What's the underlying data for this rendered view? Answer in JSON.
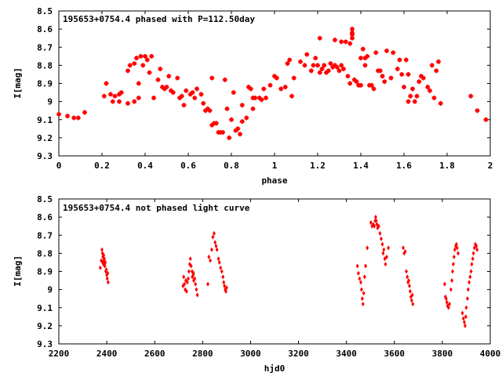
{
  "chart_data": [
    {
      "type": "scatter",
      "title": "195653+0754.4 phased with P=112.50day",
      "xlabel": "phase",
      "ylabel": "I[mag]",
      "xlim": [
        0,
        2
      ],
      "ylim": [
        8.5,
        9.3
      ],
      "y_inverted": true,
      "grid": false,
      "marker_color": "#ff0000",
      "marker": "plus",
      "x_ticks": [
        "0",
        "0.2",
        "0.4",
        "0.6",
        "0.8",
        "1",
        "1.2",
        "1.4",
        "1.6",
        "1.8",
        "2"
      ],
      "y_ticks": [
        "8.5",
        "8.6",
        "8.7",
        "8.8",
        "8.9",
        "9",
        "9.1",
        "9.2",
        "9.3"
      ],
      "points": [
        [
          0.0,
          9.07
        ],
        [
          0.04,
          9.08
        ],
        [
          0.07,
          9.09
        ],
        [
          0.09,
          9.09
        ],
        [
          0.12,
          9.06
        ],
        [
          0.21,
          8.97
        ],
        [
          0.22,
          8.9
        ],
        [
          0.24,
          8.96
        ],
        [
          0.25,
          9.0
        ],
        [
          0.26,
          8.97
        ],
        [
          0.28,
          8.96
        ],
        [
          0.28,
          9.0
        ],
        [
          0.29,
          8.95
        ],
        [
          0.32,
          8.83
        ],
        [
          0.32,
          9.01
        ],
        [
          0.33,
          8.8
        ],
        [
          0.35,
          8.79
        ],
        [
          0.35,
          9.0
        ],
        [
          0.36,
          8.76
        ],
        [
          0.37,
          8.9
        ],
        [
          0.37,
          8.98
        ],
        [
          0.38,
          8.75
        ],
        [
          0.39,
          8.8
        ],
        [
          0.4,
          8.75
        ],
        [
          0.41,
          8.77
        ],
        [
          0.42,
          8.84
        ],
        [
          0.43,
          8.75
        ],
        [
          0.44,
          8.98
        ],
        [
          0.46,
          8.88
        ],
        [
          0.47,
          8.82
        ],
        [
          0.48,
          8.92
        ],
        [
          0.49,
          8.93
        ],
        [
          0.5,
          8.92
        ],
        [
          0.51,
          8.86
        ],
        [
          0.52,
          8.94
        ],
        [
          0.53,
          8.95
        ],
        [
          0.55,
          8.87
        ],
        [
          0.56,
          8.98
        ],
        [
          0.57,
          8.97
        ],
        [
          0.58,
          9.02
        ],
        [
          0.59,
          8.94
        ],
        [
          0.61,
          8.96
        ],
        [
          0.62,
          8.95
        ],
        [
          0.63,
          8.98
        ],
        [
          0.64,
          8.93
        ],
        [
          0.66,
          8.96
        ],
        [
          0.67,
          9.01
        ],
        [
          0.68,
          9.05
        ],
        [
          0.69,
          9.04
        ],
        [
          0.7,
          9.05
        ],
        [
          0.71,
          9.13
        ],
        [
          0.71,
          8.87
        ],
        [
          0.72,
          9.12
        ],
        [
          0.73,
          9.12
        ],
        [
          0.74,
          9.17
        ],
        [
          0.75,
          9.17
        ],
        [
          0.76,
          9.17
        ],
        [
          0.77,
          8.88
        ],
        [
          0.78,
          9.04
        ],
        [
          0.79,
          9.2
        ],
        [
          0.8,
          9.1
        ],
        [
          0.81,
          8.95
        ],
        [
          0.82,
          9.16
        ],
        [
          0.83,
          9.15
        ],
        [
          0.84,
          9.18
        ],
        [
          0.85,
          9.11
        ],
        [
          0.85,
          9.02
        ],
        [
          0.87,
          9.09
        ],
        [
          0.88,
          8.92
        ],
        [
          0.89,
          8.93
        ],
        [
          0.9,
          9.04
        ],
        [
          0.9,
          8.98
        ],
        [
          0.91,
          8.98
        ],
        [
          0.93,
          8.98
        ],
        [
          0.94,
          8.99
        ],
        [
          0.95,
          8.93
        ],
        [
          0.96,
          8.98
        ],
        [
          0.98,
          8.91
        ],
        [
          1.0,
          8.86
        ],
        [
          1.01,
          8.87
        ],
        [
          1.03,
          8.93
        ],
        [
          1.05,
          8.92
        ],
        [
          1.06,
          8.79
        ],
        [
          1.07,
          8.77
        ],
        [
          1.08,
          8.97
        ],
        [
          1.09,
          8.87
        ],
        [
          1.12,
          8.78
        ],
        [
          1.14,
          8.8
        ],
        [
          1.15,
          8.74
        ],
        [
          1.17,
          8.83
        ],
        [
          1.18,
          8.8
        ],
        [
          1.19,
          8.76
        ],
        [
          1.2,
          8.8
        ],
        [
          1.21,
          8.84
        ],
        [
          1.21,
          8.65
        ],
        [
          1.22,
          8.82
        ],
        [
          1.23,
          8.8
        ],
        [
          1.24,
          8.84
        ],
        [
          1.25,
          8.83
        ],
        [
          1.26,
          8.79
        ],
        [
          1.27,
          8.81
        ],
        [
          1.28,
          8.66
        ],
        [
          1.28,
          8.8
        ],
        [
          1.29,
          8.81
        ],
        [
          1.3,
          8.83
        ],
        [
          1.31,
          8.67
        ],
        [
          1.31,
          8.8
        ],
        [
          1.32,
          8.82
        ],
        [
          1.33,
          8.67
        ],
        [
          1.34,
          8.86
        ],
        [
          1.35,
          8.68
        ],
        [
          1.35,
          8.9
        ],
        [
          1.36,
          8.65
        ],
        [
          1.36,
          8.6
        ],
        [
          1.36,
          8.62
        ],
        [
          1.36,
          8.63
        ],
        [
          1.37,
          8.88
        ],
        [
          1.38,
          8.89
        ],
        [
          1.39,
          8.91
        ],
        [
          1.4,
          8.91
        ],
        [
          1.4,
          8.76
        ],
        [
          1.41,
          8.71
        ],
        [
          1.42,
          8.8
        ],
        [
          1.42,
          8.76
        ],
        [
          1.43,
          8.75
        ],
        [
          1.44,
          8.91
        ],
        [
          1.45,
          8.91
        ],
        [
          1.46,
          8.93
        ],
        [
          1.47,
          8.73
        ],
        [
          1.48,
          8.83
        ],
        [
          1.49,
          8.83
        ],
        [
          1.5,
          8.86
        ],
        [
          1.51,
          8.89
        ],
        [
          1.52,
          8.72
        ],
        [
          1.54,
          8.87
        ],
        [
          1.55,
          8.73
        ],
        [
          1.57,
          8.82
        ],
        [
          1.58,
          8.77
        ],
        [
          1.59,
          8.85
        ],
        [
          1.6,
          8.92
        ],
        [
          1.61,
          8.77
        ],
        [
          1.62,
          8.85
        ],
        [
          1.62,
          9.0
        ],
        [
          1.63,
          8.97
        ],
        [
          1.64,
          8.93
        ],
        [
          1.65,
          9.0
        ],
        [
          1.66,
          8.97
        ],
        [
          1.67,
          8.89
        ],
        [
          1.68,
          8.86
        ],
        [
          1.69,
          8.87
        ],
        [
          1.71,
          8.92
        ],
        [
          1.72,
          8.94
        ],
        [
          1.73,
          8.8
        ],
        [
          1.74,
          8.98
        ],
        [
          1.75,
          8.83
        ],
        [
          1.76,
          8.78
        ],
        [
          1.77,
          9.01
        ],
        [
          1.91,
          8.97
        ],
        [
          1.94,
          9.05
        ],
        [
          1.98,
          9.1
        ]
      ]
    },
    {
      "type": "scatter",
      "title": "195653+0754.4 not phased light curve",
      "xlabel": "hjd0",
      "ylabel": "I[mag]",
      "xlim": [
        2200,
        4000
      ],
      "ylim": [
        8.5,
        9.3
      ],
      "y_inverted": true,
      "grid": false,
      "marker_color": "#ff0000",
      "marker": "dot",
      "x_ticks": [
        "2200",
        "2400",
        "2600",
        "2800",
        "3000",
        "3200",
        "3400",
        "3600",
        "3800",
        "4000"
      ],
      "y_ticks": [
        "8.5",
        "8.6",
        "8.7",
        "8.8",
        "8.9",
        "9",
        "9.1",
        "9.2",
        "9.3"
      ],
      "points": [
        [
          2373,
          8.88
        ],
        [
          2377,
          8.84
        ],
        [
          2380,
          8.78
        ],
        [
          2382,
          8.8
        ],
        [
          2384,
          8.82
        ],
        [
          2386,
          8.86
        ],
        [
          2388,
          8.84
        ],
        [
          2390,
          8.83
        ],
        [
          2392,
          8.87
        ],
        [
          2394,
          8.85
        ],
        [
          2396,
          8.9
        ],
        [
          2398,
          8.89
        ],
        [
          2400,
          8.92
        ],
        [
          2402,
          8.94
        ],
        [
          2404,
          8.91
        ],
        [
          2406,
          8.96
        ],
        [
          2383,
          8.85
        ],
        [
          2387,
          8.81
        ],
        [
          2391,
          8.86
        ],
        [
          2718,
          8.98
        ],
        [
          2721,
          8.93
        ],
        [
          2724,
          8.97
        ],
        [
          2727,
          9.0
        ],
        [
          2730,
          8.95
        ],
        [
          2733,
          9.01
        ],
        [
          2736,
          8.96
        ],
        [
          2740,
          8.94
        ],
        [
          2743,
          8.9
        ],
        [
          2746,
          8.86
        ],
        [
          2749,
          8.83
        ],
        [
          2752,
          8.87
        ],
        [
          2756,
          8.9
        ],
        [
          2760,
          8.92
        ],
        [
          2763,
          8.95
        ],
        [
          2767,
          8.94
        ],
        [
          2770,
          8.97
        ],
        [
          2774,
          9.0
        ],
        [
          2778,
          9.03
        ],
        [
          2762,
          8.91
        ],
        [
          2757,
          8.93
        ],
        [
          2826,
          8.82
        ],
        [
          2832,
          8.84
        ],
        [
          2838,
          8.78
        ],
        [
          2843,
          8.71
        ],
        [
          2848,
          8.69
        ],
        [
          2852,
          8.74
        ],
        [
          2856,
          8.76
        ],
        [
          2860,
          8.78
        ],
        [
          2866,
          8.83
        ],
        [
          2870,
          8.85
        ],
        [
          2875,
          8.88
        ],
        [
          2880,
          8.9
        ],
        [
          2885,
          8.93
        ],
        [
          2888,
          8.96
        ],
        [
          2891,
          8.98
        ],
        [
          2894,
          9.0
        ],
        [
          2897,
          9.01
        ],
        [
          2900,
          8.99
        ],
        [
          2822,
          8.97
        ],
        [
          3446,
          8.87
        ],
        [
          3450,
          8.91
        ],
        [
          3455,
          8.94
        ],
        [
          3460,
          8.96
        ],
        [
          3463,
          9.0
        ],
        [
          3466,
          9.05
        ],
        [
          3469,
          9.08
        ],
        [
          3472,
          9.02
        ],
        [
          3476,
          8.93
        ],
        [
          3480,
          8.87
        ],
        [
          3487,
          8.77
        ],
        [
          3502,
          8.63
        ],
        [
          3507,
          8.65
        ],
        [
          3512,
          8.64
        ],
        [
          3516,
          8.65
        ],
        [
          3520,
          8.62
        ],
        [
          3522,
          8.6
        ],
        [
          3524,
          8.62
        ],
        [
          3527,
          8.64
        ],
        [
          3530,
          8.66
        ],
        [
          3535,
          8.65
        ],
        [
          3540,
          8.69
        ],
        [
          3545,
          8.72
        ],
        [
          3550,
          8.75
        ],
        [
          3553,
          8.8
        ],
        [
          3556,
          8.78
        ],
        [
          3560,
          8.83
        ],
        [
          3563,
          8.86
        ],
        [
          3568,
          8.82
        ],
        [
          3575,
          8.77
        ],
        [
          3637,
          8.77
        ],
        [
          3641,
          8.8
        ],
        [
          3645,
          8.79
        ],
        [
          3650,
          8.9
        ],
        [
          3654,
          8.93
        ],
        [
          3657,
          8.96
        ],
        [
          3660,
          8.95
        ],
        [
          3663,
          8.98
        ],
        [
          3666,
          9.01
        ],
        [
          3669,
          9.04
        ],
        [
          3672,
          9.06
        ],
        [
          3675,
          9.03
        ],
        [
          3677,
          9.08
        ],
        [
          3810,
          8.97
        ],
        [
          3813,
          9.04
        ],
        [
          3816,
          9.05
        ],
        [
          3819,
          9.07
        ],
        [
          3822,
          9.09
        ],
        [
          3826,
          9.1
        ],
        [
          3830,
          9.08
        ],
        [
          3836,
          9.0
        ],
        [
          3840,
          8.95
        ],
        [
          3843,
          8.9
        ],
        [
          3846,
          8.86
        ],
        [
          3849,
          8.82
        ],
        [
          3852,
          8.78
        ],
        [
          3856,
          8.76
        ],
        [
          3859,
          8.75
        ],
        [
          3862,
          8.77
        ],
        [
          3866,
          8.8
        ],
        [
          3884,
          9.13
        ],
        [
          3888,
          9.16
        ],
        [
          3892,
          9.18
        ],
        [
          3895,
          9.2
        ],
        [
          3898,
          9.15
        ],
        [
          3900,
          9.1
        ],
        [
          3905,
          9.05
        ],
        [
          3908,
          9.0
        ],
        [
          3912,
          8.96
        ],
        [
          3916,
          8.93
        ],
        [
          3920,
          8.9
        ],
        [
          3923,
          8.86
        ],
        [
          3927,
          8.83
        ],
        [
          3930,
          8.8
        ],
        [
          3934,
          8.77
        ],
        [
          3938,
          8.75
        ],
        [
          3942,
          8.76
        ],
        [
          3945,
          8.78
        ]
      ]
    }
  ]
}
